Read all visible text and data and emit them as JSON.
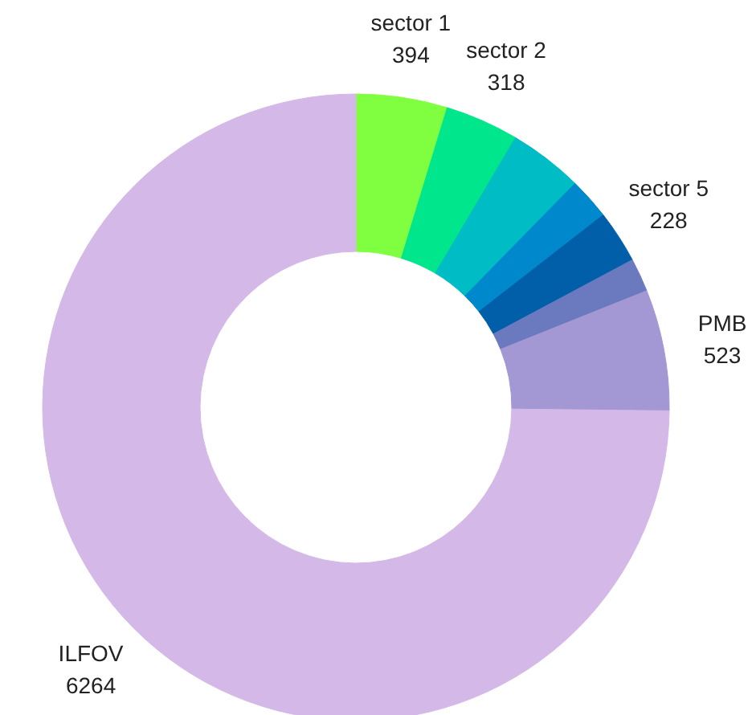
{
  "chart_data": {
    "type": "donut",
    "categories": [
      "sector 1",
      "sector 2",
      null,
      null,
      "sector 5",
      null,
      "PMB",
      "ILFOV"
    ],
    "values": [
      394,
      318,
      320,
      180,
      228,
      145,
      523,
      6264
    ],
    "value_labels": [
      "394",
      "318",
      null,
      null,
      "228",
      null,
      "523",
      "6264"
    ],
    "colors": [
      "#80ff40",
      "#00e68c",
      "#00bcc4",
      "#0088cc",
      "#005fa8",
      "#6b7abf",
      "#a498d4",
      "#d4b8e8"
    ]
  }
}
